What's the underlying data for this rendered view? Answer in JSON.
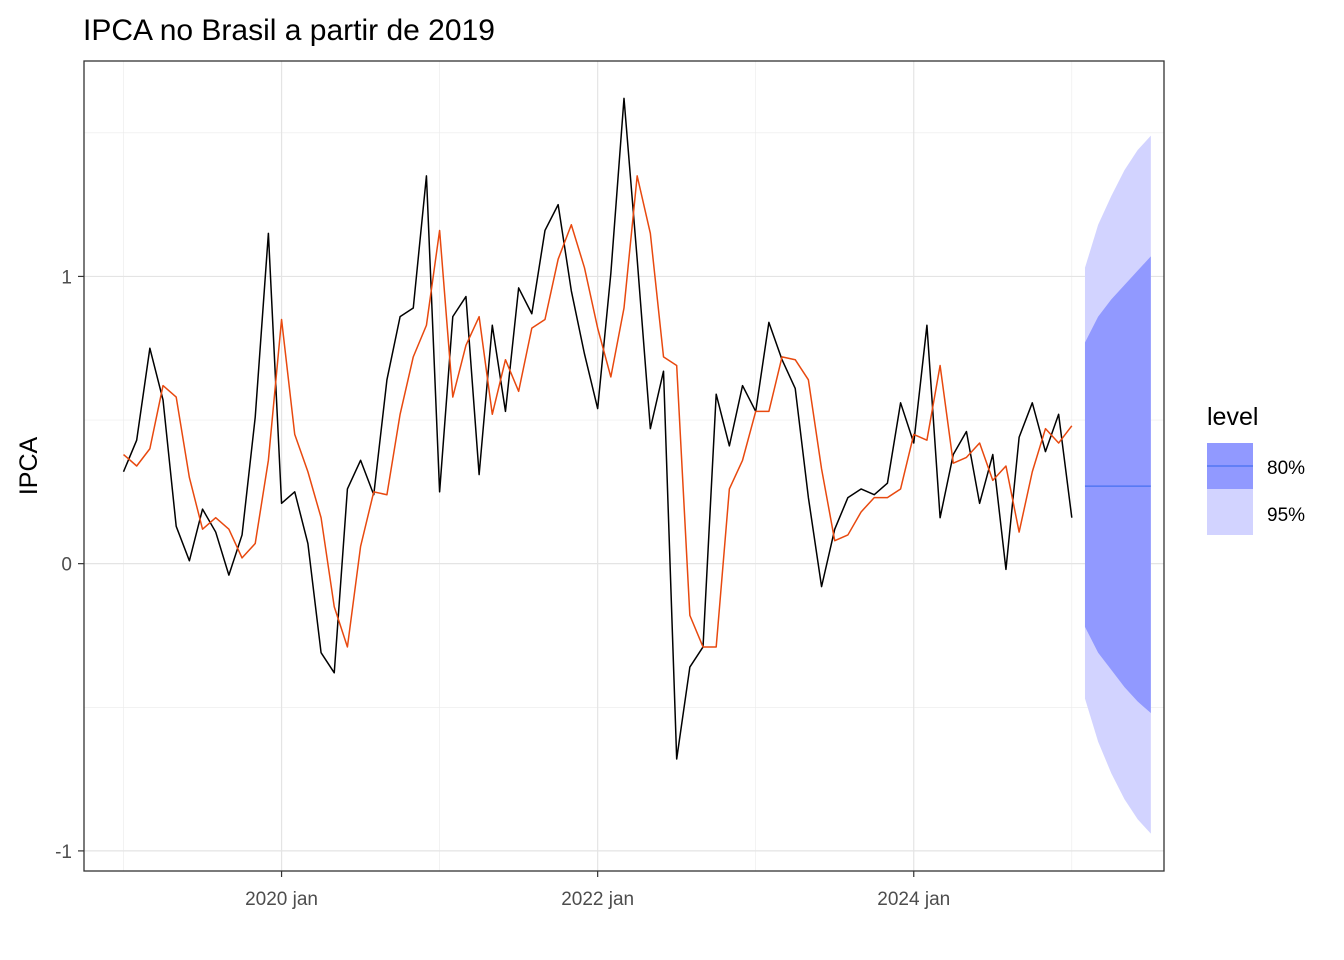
{
  "chart_data": {
    "type": "line",
    "title": "IPCA no Brasil a partir de 2019",
    "xlabel": "",
    "ylabel": "IPCA",
    "x_ticks": [
      {
        "date": "2020-01",
        "label": "2020 jan"
      },
      {
        "date": "2022-01",
        "label": "2022 jan"
      },
      {
        "date": "2024-01",
        "label": "2024 jan"
      }
    ],
    "y_ticks": [
      {
        "value": -1,
        "label": "-1"
      },
      {
        "value": 0,
        "label": "0"
      },
      {
        "value": 1,
        "label": "1"
      }
    ],
    "xlim": [
      "2018-10",
      "2025-08"
    ],
    "ylim": [
      -1.07,
      1.75
    ],
    "grid": true,
    "legend": {
      "title": "level",
      "position": "right",
      "entries": [
        {
          "label": "80%",
          "color": "#9199ff"
        },
        {
          "label": "95%",
          "color": "#d2d3ff"
        }
      ]
    },
    "series": [
      {
        "color": "#000000",
        "x": [
          "2019-01",
          "2019-02",
          "2019-03",
          "2019-04",
          "2019-05",
          "2019-06",
          "2019-07",
          "2019-08",
          "2019-09",
          "2019-10",
          "2019-11",
          "2019-12",
          "2020-01",
          "2020-02",
          "2020-03",
          "2020-04",
          "2020-05",
          "2020-06",
          "2020-07",
          "2020-08",
          "2020-09",
          "2020-10",
          "2020-11",
          "2020-12",
          "2021-01",
          "2021-02",
          "2021-03",
          "2021-04",
          "2021-05",
          "2021-06",
          "2021-07",
          "2021-08",
          "2021-09",
          "2021-10",
          "2021-11",
          "2021-12",
          "2022-01",
          "2022-02",
          "2022-03",
          "2022-04",
          "2022-05",
          "2022-06",
          "2022-07",
          "2022-08",
          "2022-09",
          "2022-10",
          "2022-11",
          "2022-12",
          "2023-01",
          "2023-02",
          "2023-03",
          "2023-04",
          "2023-05",
          "2023-06",
          "2023-07",
          "2023-08",
          "2023-09",
          "2023-10",
          "2023-11",
          "2023-12",
          "2024-01",
          "2024-02",
          "2024-03",
          "2024-04",
          "2024-05",
          "2024-06",
          "2024-07",
          "2024-08",
          "2024-09",
          "2024-10",
          "2024-11",
          "2024-12",
          "2025-01"
        ],
        "values": [
          0.32,
          0.43,
          0.75,
          0.57,
          0.13,
          0.01,
          0.19,
          0.11,
          -0.04,
          0.1,
          0.51,
          1.15,
          0.21,
          0.25,
          0.07,
          -0.31,
          -0.38,
          0.26,
          0.36,
          0.24,
          0.64,
          0.86,
          0.89,
          1.35,
          0.25,
          0.86,
          0.93,
          0.31,
          0.83,
          0.53,
          0.96,
          0.87,
          1.16,
          1.25,
          0.95,
          0.73,
          0.54,
          1.01,
          1.62,
          1.06,
          0.47,
          0.67,
          -0.68,
          -0.36,
          -0.29,
          0.59,
          0.41,
          0.62,
          0.53,
          0.84,
          0.71,
          0.61,
          0.23,
          -0.08,
          0.12,
          0.23,
          0.26,
          0.24,
          0.28,
          0.56,
          0.42,
          0.83,
          0.16,
          0.38,
          0.46,
          0.21,
          0.38,
          -0.02,
          0.44,
          0.56,
          0.39,
          0.52,
          0.16
        ]
      },
      {
        "color": "#e8490f",
        "x": [
          "2019-01",
          "2019-02",
          "2019-03",
          "2019-04",
          "2019-05",
          "2019-06",
          "2019-07",
          "2019-08",
          "2019-09",
          "2019-10",
          "2019-11",
          "2019-12",
          "2020-01",
          "2020-02",
          "2020-03",
          "2020-04",
          "2020-05",
          "2020-06",
          "2020-07",
          "2020-08",
          "2020-09",
          "2020-10",
          "2020-11",
          "2020-12",
          "2021-01",
          "2021-02",
          "2021-03",
          "2021-04",
          "2021-05",
          "2021-06",
          "2021-07",
          "2021-08",
          "2021-09",
          "2021-10",
          "2021-11",
          "2021-12",
          "2022-01",
          "2022-02",
          "2022-03",
          "2022-04",
          "2022-05",
          "2022-06",
          "2022-07",
          "2022-08",
          "2022-09",
          "2022-10",
          "2022-11",
          "2022-12",
          "2023-01",
          "2023-02",
          "2023-03",
          "2023-04",
          "2023-05",
          "2023-06",
          "2023-07",
          "2023-08",
          "2023-09",
          "2023-10",
          "2023-11",
          "2023-12",
          "2024-01",
          "2024-02",
          "2024-03",
          "2024-04",
          "2024-05",
          "2024-06",
          "2024-07",
          "2024-08",
          "2024-09",
          "2024-10",
          "2024-11",
          "2024-12",
          "2025-01"
        ],
        "values": [
          0.38,
          0.34,
          0.4,
          0.62,
          0.58,
          0.3,
          0.12,
          0.16,
          0.12,
          0.02,
          0.07,
          0.36,
          0.85,
          0.45,
          0.32,
          0.16,
          -0.15,
          -0.29,
          0.06,
          0.25,
          0.24,
          0.52,
          0.72,
          0.83,
          1.16,
          0.58,
          0.76,
          0.86,
          0.52,
          0.71,
          0.6,
          0.82,
          0.85,
          1.06,
          1.18,
          1.03,
          0.82,
          0.65,
          0.89,
          1.35,
          1.15,
          0.72,
          0.69,
          -0.18,
          -0.29,
          -0.29,
          0.26,
          0.36,
          0.53,
          0.53,
          0.72,
          0.71,
          0.64,
          0.33,
          0.08,
          0.1,
          0.18,
          0.23,
          0.23,
          0.26,
          0.45,
          0.43,
          0.69,
          0.35,
          0.37,
          0.42,
          0.29,
          0.34,
          0.11,
          0.32,
          0.47,
          0.42,
          0.48
        ]
      }
    ],
    "forecast": {
      "color": "#4670f0",
      "x": [
        "2025-02",
        "2025-03",
        "2025-04",
        "2025-05",
        "2025-06",
        "2025-07"
      ],
      "mean": [
        0.27,
        0.27,
        0.27,
        0.27,
        0.27,
        0.27
      ],
      "lo80": [
        -0.22,
        -0.31,
        -0.37,
        -0.43,
        -0.48,
        -0.52
      ],
      "hi80": [
        0.77,
        0.86,
        0.92,
        0.97,
        1.02,
        1.07
      ],
      "lo95": [
        -0.47,
        -0.62,
        -0.73,
        -0.82,
        -0.89,
        -0.94
      ],
      "hi95": [
        1.03,
        1.18,
        1.28,
        1.37,
        1.44,
        1.49
      ]
    }
  }
}
